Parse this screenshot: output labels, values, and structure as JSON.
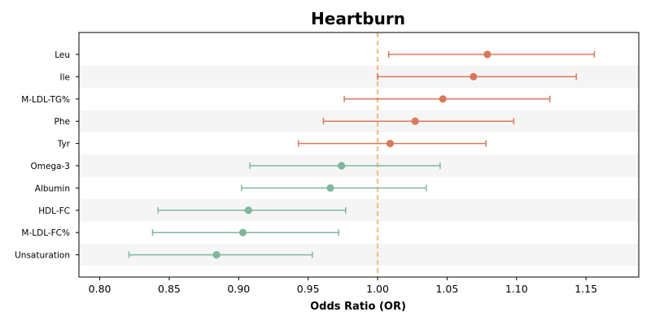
{
  "chart_data": {
    "type": "forest",
    "title": "Heartburn",
    "xlabel": "Odds Ratio (OR)",
    "ylabel": "",
    "xlim": [
      0.785,
      1.188
    ],
    "xticks": [
      0.8,
      0.85,
      0.9,
      0.95,
      1.0,
      1.05,
      1.1,
      1.15
    ],
    "xtick_labels": [
      "0.80",
      "0.85",
      "0.90",
      "0.95",
      "1.00",
      "1.05",
      "1.10",
      "1.15"
    ],
    "reference_line": 1.0,
    "grid": false,
    "alternating_row_shading": true,
    "colors": {
      "risk": "#d9785b",
      "protective": "#80b69b",
      "reference": "#f2c27c",
      "row_shade": "#f5f5f5"
    },
    "rows": [
      {
        "label": "Leu",
        "or": 1.079,
        "lower": 1.008,
        "upper": 1.156,
        "group": "risk"
      },
      {
        "label": "Ile",
        "or": 1.069,
        "lower": 1.0,
        "upper": 1.143,
        "group": "risk"
      },
      {
        "label": "M-LDL-TG%",
        "or": 1.047,
        "lower": 0.976,
        "upper": 1.124,
        "group": "risk"
      },
      {
        "label": "Phe",
        "or": 1.027,
        "lower": 0.961,
        "upper": 1.098,
        "group": "risk"
      },
      {
        "label": "Tyr",
        "or": 1.009,
        "lower": 0.943,
        "upper": 1.078,
        "group": "risk"
      },
      {
        "label": "Omega-3",
        "or": 0.974,
        "lower": 0.908,
        "upper": 1.045,
        "group": "protective"
      },
      {
        "label": "Albumin",
        "or": 0.966,
        "lower": 0.902,
        "upper": 1.035,
        "group": "protective"
      },
      {
        "label": "HDL-FC",
        "or": 0.907,
        "lower": 0.842,
        "upper": 0.977,
        "group": "protective"
      },
      {
        "label": "M-LDL-FC%",
        "or": 0.903,
        "lower": 0.838,
        "upper": 0.972,
        "group": "protective"
      },
      {
        "label": "Unsaturation",
        "or": 0.884,
        "lower": 0.821,
        "upper": 0.953,
        "group": "protective"
      }
    ]
  }
}
